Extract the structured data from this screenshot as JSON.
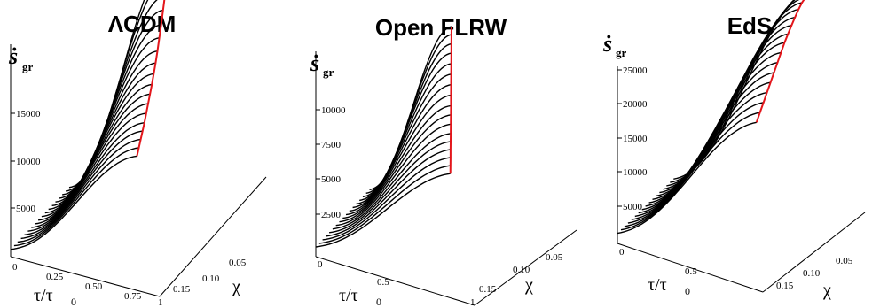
{
  "figure": {
    "panel_count": 3
  },
  "chart_data": [
    {
      "type": "surface",
      "title": "ΛCDM",
      "zlabel_main": "ṡ",
      "zlabel_sub": "gr",
      "xlabel": "τ/τ",
      "xlabel_sub": "0",
      "ylabel": "χ",
      "z_ticks": [
        "5000",
        "10000",
        "15000"
      ],
      "x_ticks": [
        "0",
        "0.25",
        "0.50",
        "0.75",
        "1"
      ],
      "y_ticks": [
        "0.15",
        "0.10",
        "0.05"
      ],
      "x": [
        0,
        0.1,
        0.2,
        0.3,
        0.4,
        0.5,
        0.6,
        0.7,
        0.8,
        0.9,
        1.0
      ],
      "chi": [
        0.17,
        0.16,
        0.15,
        0.14,
        0.13,
        0.12,
        0.11,
        0.1,
        0.09,
        0.08,
        0.07,
        0.06,
        0.05,
        0.04,
        0.03,
        0.02,
        0.01,
        0.005
      ],
      "z_peak_per_curve": [
        6500,
        6900,
        7300,
        7700,
        8100,
        8600,
        9100,
        9600,
        10100,
        10700,
        11300,
        12000,
        12800,
        13600,
        14500,
        15400,
        16500,
        17400
      ],
      "peak_x_per_curve": [
        0.8,
        0.79,
        0.78,
        0.77,
        0.76,
        0.75,
        0.74,
        0.73,
        0.72,
        0.71,
        0.7,
        0.69,
        0.68,
        0.67,
        0.66,
        0.65,
        0.64,
        0.63
      ],
      "zlim": [
        0,
        18000
      ],
      "boundary_color": "#e3161b"
    },
    {
      "type": "surface",
      "title": "Open FLRW",
      "zlabel_main": "ṡ",
      "zlabel_sub": "gr",
      "xlabel": "τ/τ",
      "xlabel_sub": "0",
      "ylabel": "χ",
      "z_ticks": [
        "2500",
        "5000",
        "7500",
        "10000"
      ],
      "x_ticks": [
        "0",
        "0.5",
        "1"
      ],
      "y_ticks": [
        "0.15",
        "0.10",
        "0.05"
      ],
      "x": [
        0,
        0.1,
        0.2,
        0.3,
        0.4,
        0.5,
        0.6,
        0.7,
        0.8,
        0.9,
        1.0
      ],
      "chi": [
        0.17,
        0.16,
        0.15,
        0.14,
        0.13,
        0.12,
        0.11,
        0.1,
        0.09,
        0.08,
        0.07,
        0.06,
        0.05,
        0.04,
        0.03,
        0.02,
        0.01
      ],
      "z_peak_per_curve": [
        4500,
        4900,
        5300,
        5700,
        6100,
        6500,
        7000,
        7500,
        8000,
        8600,
        9200,
        9800,
        10400,
        11000,
        11500,
        12000,
        12400
      ],
      "peak_x_per_curve": [
        0.82,
        0.8,
        0.78,
        0.76,
        0.74,
        0.72,
        0.7,
        0.68,
        0.66,
        0.64,
        0.62,
        0.6,
        0.58,
        0.56,
        0.54,
        0.52,
        0.5
      ],
      "zlim": [
        0,
        13000
      ],
      "boundary_color": "#e3161b"
    },
    {
      "type": "surface",
      "title": "EdS",
      "zlabel_main": "ṡ",
      "zlabel_sub": "gr",
      "xlabel": "τ/τ",
      "xlabel_sub": "0",
      "ylabel": "χ",
      "z_ticks": [
        "5000",
        "10000",
        "15000",
        "20000",
        "25000"
      ],
      "x_ticks": [
        "0",
        "0.5"
      ],
      "y_ticks": [
        "0.15",
        "0.10",
        "0.05"
      ],
      "x": [
        0,
        0.1,
        0.2,
        0.3,
        0.4,
        0.5,
        0.6,
        0.7,
        0.8,
        0.9,
        1.0
      ],
      "chi": [
        0.17,
        0.16,
        0.15,
        0.14,
        0.13,
        0.12,
        0.11,
        0.1,
        0.09,
        0.08,
        0.07,
        0.06,
        0.05,
        0.04,
        0.03,
        0.02,
        0.01
      ],
      "z_peak_per_curve": [
        13000,
        14000,
        15000,
        16000,
        17000,
        18000,
        19000,
        20000,
        21000,
        21800,
        22600,
        23300,
        24000,
        24500,
        24800,
        25000,
        25100
      ],
      "peak_x_per_curve": [
        0.95,
        0.95,
        0.95,
        0.95,
        0.95,
        0.95,
        0.95,
        0.95,
        0.95,
        0.95,
        0.95,
        0.95,
        0.95,
        0.95,
        0.95,
        0.95,
        0.95
      ],
      "zlim": [
        0,
        26000
      ],
      "boundary_color": "#e3161b"
    }
  ]
}
